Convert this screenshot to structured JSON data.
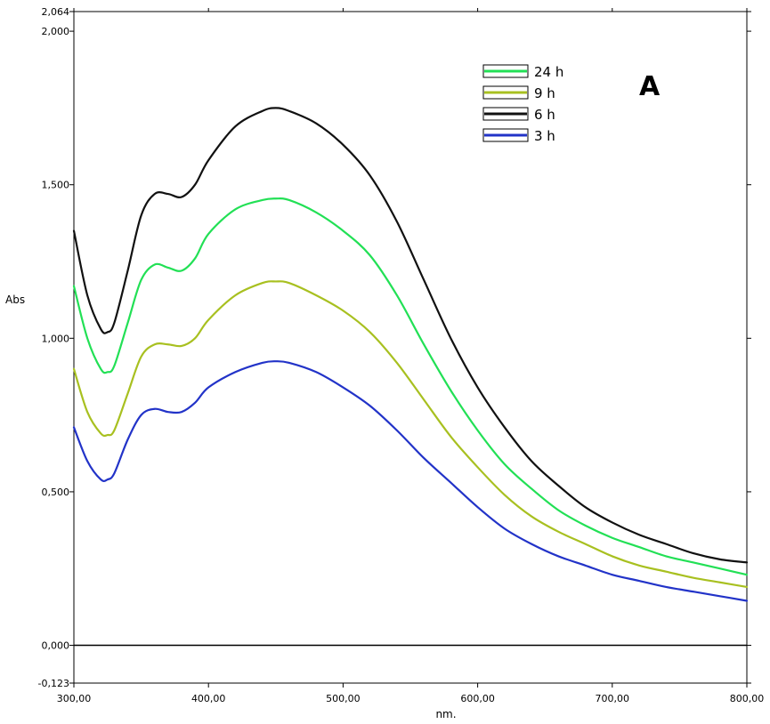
{
  "chart_data": {
    "type": "line",
    "panel_label": "A",
    "xlabel": "nm.",
    "ylabel": "Abs",
    "xlim": [
      300,
      800
    ],
    "ylim": [
      -0.123,
      2.064
    ],
    "x_ticks": [
      "300,00",
      "400,00",
      "500,00",
      "600,00",
      "700,00",
      "800,00"
    ],
    "y_ticks": [
      "-0,123",
      "0,000",
      "0,500",
      "1,000",
      "1,500",
      "2,000",
      "2,064"
    ],
    "legend_position": "top-right",
    "series": [
      {
        "name": "24 h",
        "color": "#22e055",
        "x": [
          300,
          310,
          320,
          325,
          330,
          340,
          350,
          360,
          370,
          380,
          390,
          400,
          420,
          440,
          450,
          460,
          480,
          500,
          520,
          540,
          560,
          580,
          600,
          620,
          640,
          660,
          680,
          700,
          720,
          740,
          760,
          780,
          800
        ],
        "y": [
          1.17,
          1.0,
          0.9,
          0.89,
          0.91,
          1.05,
          1.19,
          1.24,
          1.23,
          1.22,
          1.26,
          1.34,
          1.42,
          1.45,
          1.455,
          1.45,
          1.41,
          1.35,
          1.27,
          1.14,
          0.98,
          0.83,
          0.7,
          0.59,
          0.51,
          0.44,
          0.39,
          0.35,
          0.32,
          0.29,
          0.27,
          0.25,
          0.23
        ]
      },
      {
        "name": "9 h",
        "color": "#a8c020",
        "x": [
          300,
          310,
          320,
          325,
          330,
          340,
          350,
          360,
          370,
          380,
          390,
          400,
          420,
          440,
          450,
          460,
          480,
          500,
          520,
          540,
          560,
          580,
          600,
          620,
          640,
          660,
          680,
          700,
          720,
          740,
          760,
          780,
          800
        ],
        "y": [
          0.9,
          0.76,
          0.69,
          0.685,
          0.7,
          0.82,
          0.94,
          0.98,
          0.98,
          0.975,
          1.0,
          1.06,
          1.14,
          1.18,
          1.185,
          1.18,
          1.14,
          1.09,
          1.02,
          0.92,
          0.8,
          0.68,
          0.58,
          0.49,
          0.42,
          0.37,
          0.33,
          0.29,
          0.26,
          0.24,
          0.22,
          0.205,
          0.19
        ]
      },
      {
        "name": "6 h",
        "color": "#111111",
        "x": [
          300,
          310,
          320,
          325,
          330,
          340,
          350,
          360,
          370,
          380,
          390,
          400,
          420,
          440,
          450,
          460,
          480,
          500,
          520,
          540,
          560,
          580,
          600,
          620,
          640,
          660,
          680,
          700,
          720,
          740,
          760,
          780,
          800
        ],
        "y": [
          1.35,
          1.14,
          1.03,
          1.02,
          1.05,
          1.22,
          1.4,
          1.47,
          1.47,
          1.46,
          1.5,
          1.58,
          1.69,
          1.74,
          1.75,
          1.74,
          1.7,
          1.63,
          1.53,
          1.38,
          1.19,
          1.0,
          0.84,
          0.71,
          0.6,
          0.52,
          0.45,
          0.4,
          0.36,
          0.33,
          0.3,
          0.28,
          0.27
        ]
      },
      {
        "name": "3 h",
        "color": "#2233c8",
        "x": [
          300,
          310,
          320,
          325,
          330,
          340,
          350,
          360,
          370,
          380,
          390,
          400,
          420,
          440,
          450,
          460,
          480,
          500,
          520,
          540,
          560,
          580,
          600,
          620,
          640,
          660,
          680,
          700,
          720,
          740,
          760,
          780,
          800
        ],
        "y": [
          0.71,
          0.6,
          0.54,
          0.54,
          0.56,
          0.67,
          0.75,
          0.77,
          0.76,
          0.76,
          0.79,
          0.84,
          0.89,
          0.92,
          0.925,
          0.92,
          0.89,
          0.84,
          0.78,
          0.7,
          0.61,
          0.53,
          0.45,
          0.38,
          0.33,
          0.29,
          0.26,
          0.23,
          0.21,
          0.19,
          0.175,
          0.16,
          0.145
        ]
      }
    ]
  }
}
